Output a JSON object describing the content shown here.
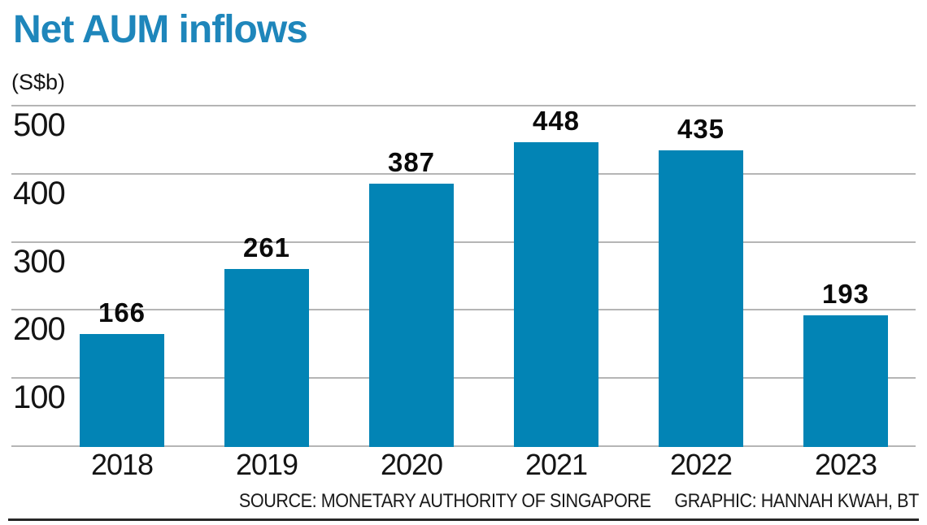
{
  "header": {
    "title": "Net AUM inflows",
    "unit_label": "(S$b)"
  },
  "chart_data": {
    "type": "bar",
    "title": "Net AUM inflows",
    "unit_label": "(S$b)",
    "categories": [
      "2018",
      "2019",
      "2020",
      "2021",
      "2022",
      "2023"
    ],
    "values": [
      166,
      261,
      387,
      448,
      435,
      193
    ],
    "xlabel": "",
    "ylabel": "(S$b)",
    "ylim": [
      0,
      500
    ],
    "yticks": [
      100,
      200,
      300,
      400,
      500
    ],
    "grid": true,
    "legend": false,
    "value_labels_shown": true,
    "bar_color": "#0284b5",
    "title_color": "#1e86bb",
    "gridline_color": "#b5b5b5"
  },
  "footer": {
    "source": "SOURCE: MONETARY AUTHORITY OF SINGAPORE",
    "graphic": "GRAPHIC: HANNAH KWAH, BT"
  }
}
